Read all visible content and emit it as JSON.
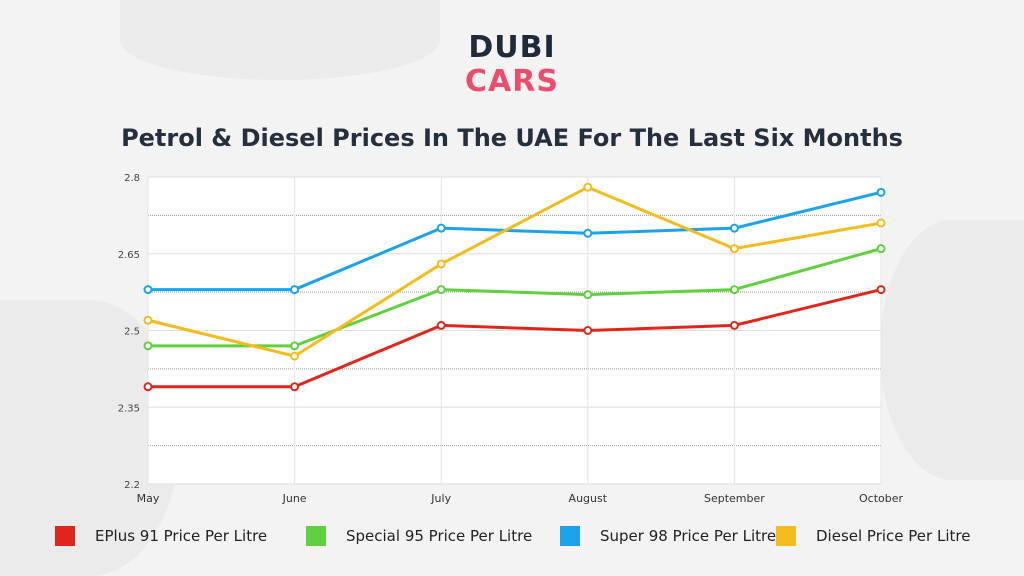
{
  "logo": {
    "line1": "DUBI",
    "line2": "CARS"
  },
  "chart_data": {
    "type": "line",
    "title": "Petrol & Diesel Prices In The UAE For The Last Six Months",
    "xlabel": "",
    "ylabel": "",
    "categories": [
      "May",
      "June",
      "July",
      "August",
      "September",
      "October"
    ],
    "ylim": [
      2.2,
      2.8
    ],
    "yticks": [
      "2.2",
      "2.35",
      "2.5",
      "2.65",
      "2.8"
    ],
    "grid": true,
    "legend_position": "bottom",
    "series": [
      {
        "name": "EPlus 91 Price Per Litre",
        "color": "#e0261b",
        "values": [
          2.39,
          2.39,
          2.51,
          2.5,
          2.51,
          2.58
        ]
      },
      {
        "name": "Special 95 Price Per Litre",
        "color": "#5fd13f",
        "values": [
          2.47,
          2.47,
          2.58,
          2.57,
          2.58,
          2.66
        ]
      },
      {
        "name": "Super 98 Price Per Litre",
        "color": "#1ba3ea",
        "values": [
          2.58,
          2.58,
          2.7,
          2.69,
          2.7,
          2.77
        ]
      },
      {
        "name": "Diesel Price Per Litre",
        "color": "#f3bb1c",
        "values": [
          2.52,
          2.45,
          2.63,
          2.78,
          2.66,
          2.71
        ]
      }
    ]
  }
}
